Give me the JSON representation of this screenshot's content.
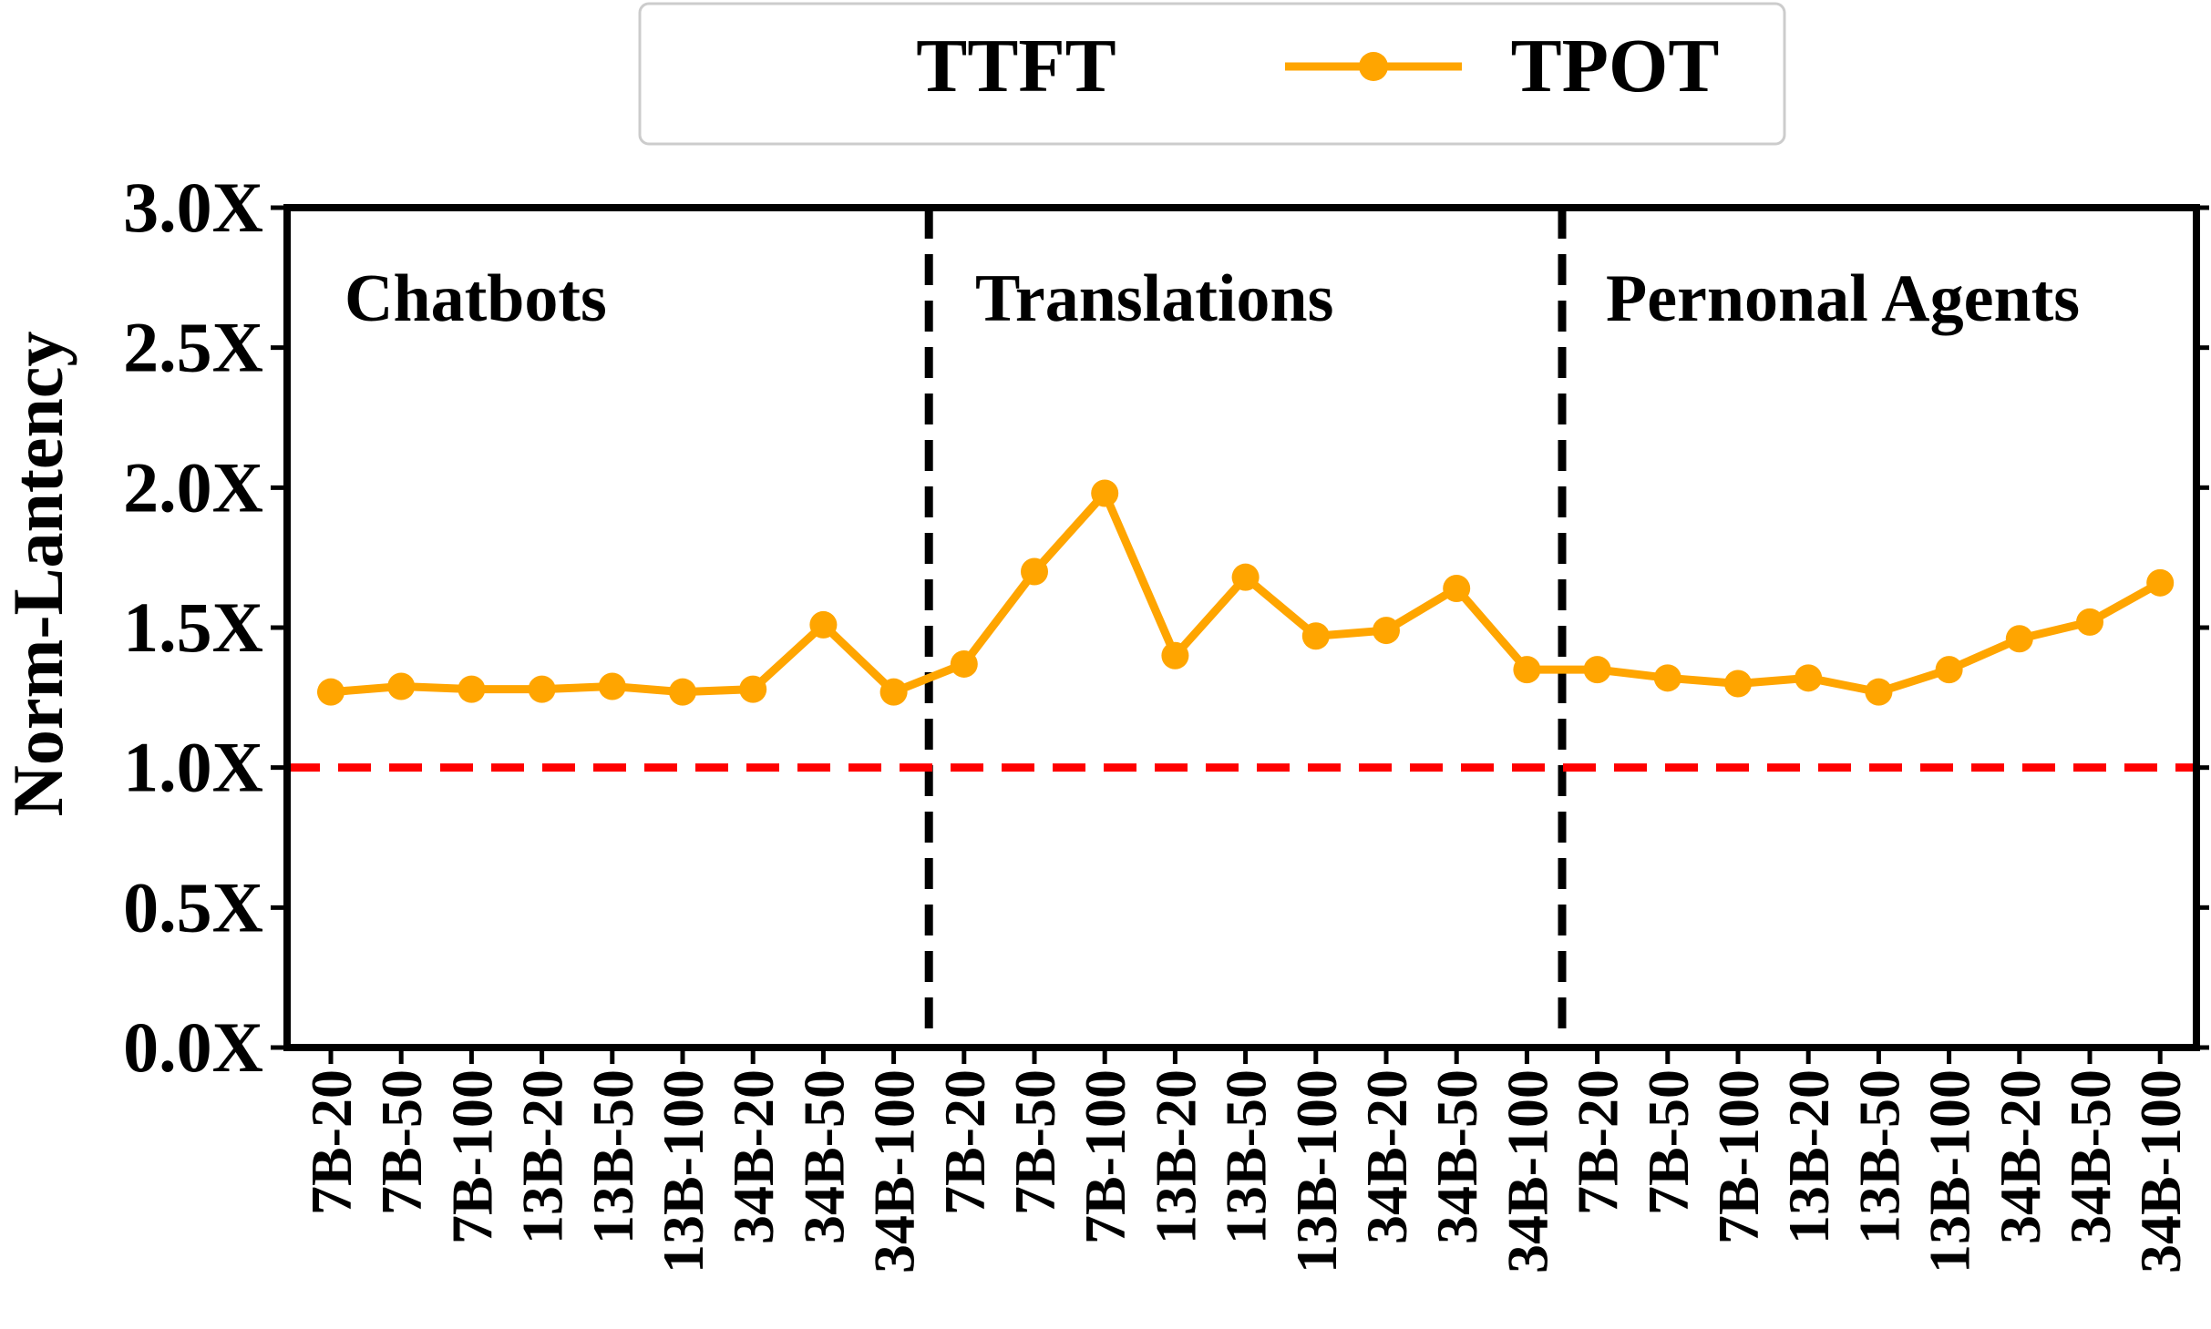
{
  "chart_data": {
    "type": "line",
    "ylabel": "Norm-Lantency",
    "xlabel": "",
    "ylim": [
      0,
      3
    ],
    "yticks": [
      "0.0X",
      "0.5X",
      "1.0X",
      "1.5X",
      "2.0X",
      "2.5X",
      "3.0X"
    ],
    "yticks_values": [
      0,
      0.5,
      1.0,
      1.5,
      2.0,
      2.5,
      3.0
    ],
    "categories": [
      "7B-20",
      "7B-50",
      "7B-100",
      "13B-20",
      "13B-50",
      "13B-100",
      "34B-20",
      "34B-50",
      "34B-100",
      "7B-20",
      "7B-50",
      "7B-100",
      "13B-20",
      "13B-50",
      "13B-100",
      "34B-20",
      "34B-50",
      "34B-100",
      "7B-20",
      "7B-50",
      "7B-100",
      "13B-20",
      "13B-50",
      "13B-100",
      "34B-20",
      "34B-50",
      "34B-100"
    ],
    "series": [
      {
        "name": "TPOT",
        "color": "#FFA500",
        "values": [
          1.27,
          1.29,
          1.28,
          1.28,
          1.29,
          1.27,
          1.28,
          1.51,
          1.27,
          1.37,
          1.7,
          1.98,
          1.4,
          1.68,
          1.47,
          1.49,
          1.64,
          1.35,
          1.35,
          1.32,
          1.3,
          1.32,
          1.27,
          1.35,
          1.46,
          1.52,
          1.66
        ]
      }
    ],
    "legend": {
      "placement": "top-center",
      "entries": [
        "TTFT",
        "TPOT"
      ]
    },
    "groups": [
      "Chatbots",
      "Translations",
      "Pernonal Agents"
    ],
    "reference_line": {
      "value": 1.0,
      "color": "#FF0000",
      "style": "dashed"
    },
    "divider_color": "#000000",
    "grid": false
  }
}
